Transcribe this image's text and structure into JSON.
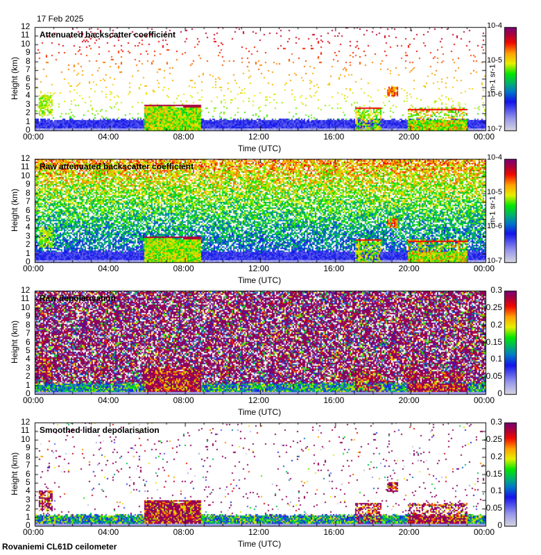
{
  "header": {
    "date": "17 Feb 2025"
  },
  "footer": {
    "site": "Rovaniemi CL61D ceilometer"
  },
  "chart_data": [
    {
      "type": "heatmap",
      "title": "Attenuated backscatter coefficient",
      "xlabel": "Time (UTC)",
      "ylabel": "Height (km)",
      "xticks": [
        "00:00",
        "04:00",
        "08:00",
        "12:00",
        "16:00",
        "20:00",
        "00:00"
      ],
      "xlim_hours": [
        0,
        24
      ],
      "yticks": [
        "0",
        "1",
        "2",
        "3",
        "4",
        "5",
        "6",
        "7",
        "8",
        "9",
        "10",
        "11",
        "12"
      ],
      "ylim": [
        0,
        12
      ],
      "colorbar": {
        "scale": "log",
        "label": "m-1 sr-1",
        "range": [
          1e-07,
          0.0001
        ],
        "ticks": [
          "10-7",
          "10-6",
          "10-5",
          "10-4"
        ]
      },
      "noise": "sparse"
    },
    {
      "type": "heatmap",
      "title": "Raw attenuated backscatter coefficient",
      "xlabel": "Time (UTC)",
      "ylabel": "Height (km)",
      "xticks": [
        "00:00",
        "04:00",
        "08:00",
        "12:00",
        "16:00",
        "20:00",
        "00:00"
      ],
      "xlim_hours": [
        0,
        24
      ],
      "yticks": [
        "0",
        "1",
        "2",
        "3",
        "4",
        "5",
        "6",
        "7",
        "8",
        "9",
        "10",
        "11",
        "12"
      ],
      "ylim": [
        0,
        12
      ],
      "colorbar": {
        "scale": "log",
        "label": "m-1 sr-1",
        "range": [
          1e-07,
          0.0001
        ],
        "ticks": [
          "10-7",
          "10-6",
          "10-5",
          "10-4"
        ]
      },
      "noise": "dense"
    },
    {
      "type": "heatmap",
      "title": "Raw depolarisation",
      "xlabel": "Time (UTC)",
      "ylabel": "Height (km)",
      "xticks": [
        "00:00",
        "04:00",
        "08:00",
        "12:00",
        "16:00",
        "20:00",
        "00:00"
      ],
      "xlim_hours": [
        0,
        24
      ],
      "yticks": [
        "0",
        "1",
        "2",
        "3",
        "4",
        "5",
        "6",
        "7",
        "8",
        "9",
        "10",
        "11",
        "12"
      ],
      "ylim": [
        0,
        12
      ],
      "colorbar": {
        "scale": "linear",
        "label": "",
        "range": [
          0,
          0.3
        ],
        "ticks": [
          "0",
          "0.05",
          "0.1",
          "0.15",
          "0.2",
          "0.25",
          "0.3"
        ]
      },
      "noise": "depol"
    },
    {
      "type": "heatmap",
      "title": "Smoothed lidar depolarisation",
      "xlabel": "Time (UTC)",
      "ylabel": "Height (km)",
      "xticks": [
        "00:00",
        "04:00",
        "08:00",
        "12:00",
        "16:00",
        "20:00",
        "00:00"
      ],
      "xlim_hours": [
        0,
        24
      ],
      "yticks": [
        "0",
        "1",
        "2",
        "3",
        "4",
        "5",
        "6",
        "7",
        "8",
        "9",
        "10",
        "11",
        "12"
      ],
      "ylim": [
        0,
        12
      ],
      "colorbar": {
        "scale": "linear",
        "label": "",
        "range": [
          0,
          0.3
        ],
        "ticks": [
          "0",
          "0.05",
          "0.1",
          "0.15",
          "0.2",
          "0.25",
          "0.3"
        ]
      },
      "noise": "sparse-depol"
    }
  ],
  "features": [
    {
      "desc": "boundary layer",
      "t": [
        0,
        24
      ],
      "h": [
        0,
        1.5
      ]
    },
    {
      "desc": "cloud",
      "t": [
        5.8,
        8.8
      ],
      "h": [
        0,
        3.2
      ]
    },
    {
      "desc": "cloud",
      "t": [
        0.2,
        0.9
      ],
      "h": [
        1.8,
        4.2
      ]
    },
    {
      "desc": "cloud",
      "t": [
        17,
        18.4
      ],
      "h": [
        0,
        2.8
      ]
    },
    {
      "desc": "cloud",
      "t": [
        18.7,
        19.3
      ],
      "h": [
        4,
        5.2
      ]
    },
    {
      "desc": "cloud",
      "t": [
        19.8,
        23
      ],
      "h": [
        0,
        2.8
      ]
    }
  ]
}
